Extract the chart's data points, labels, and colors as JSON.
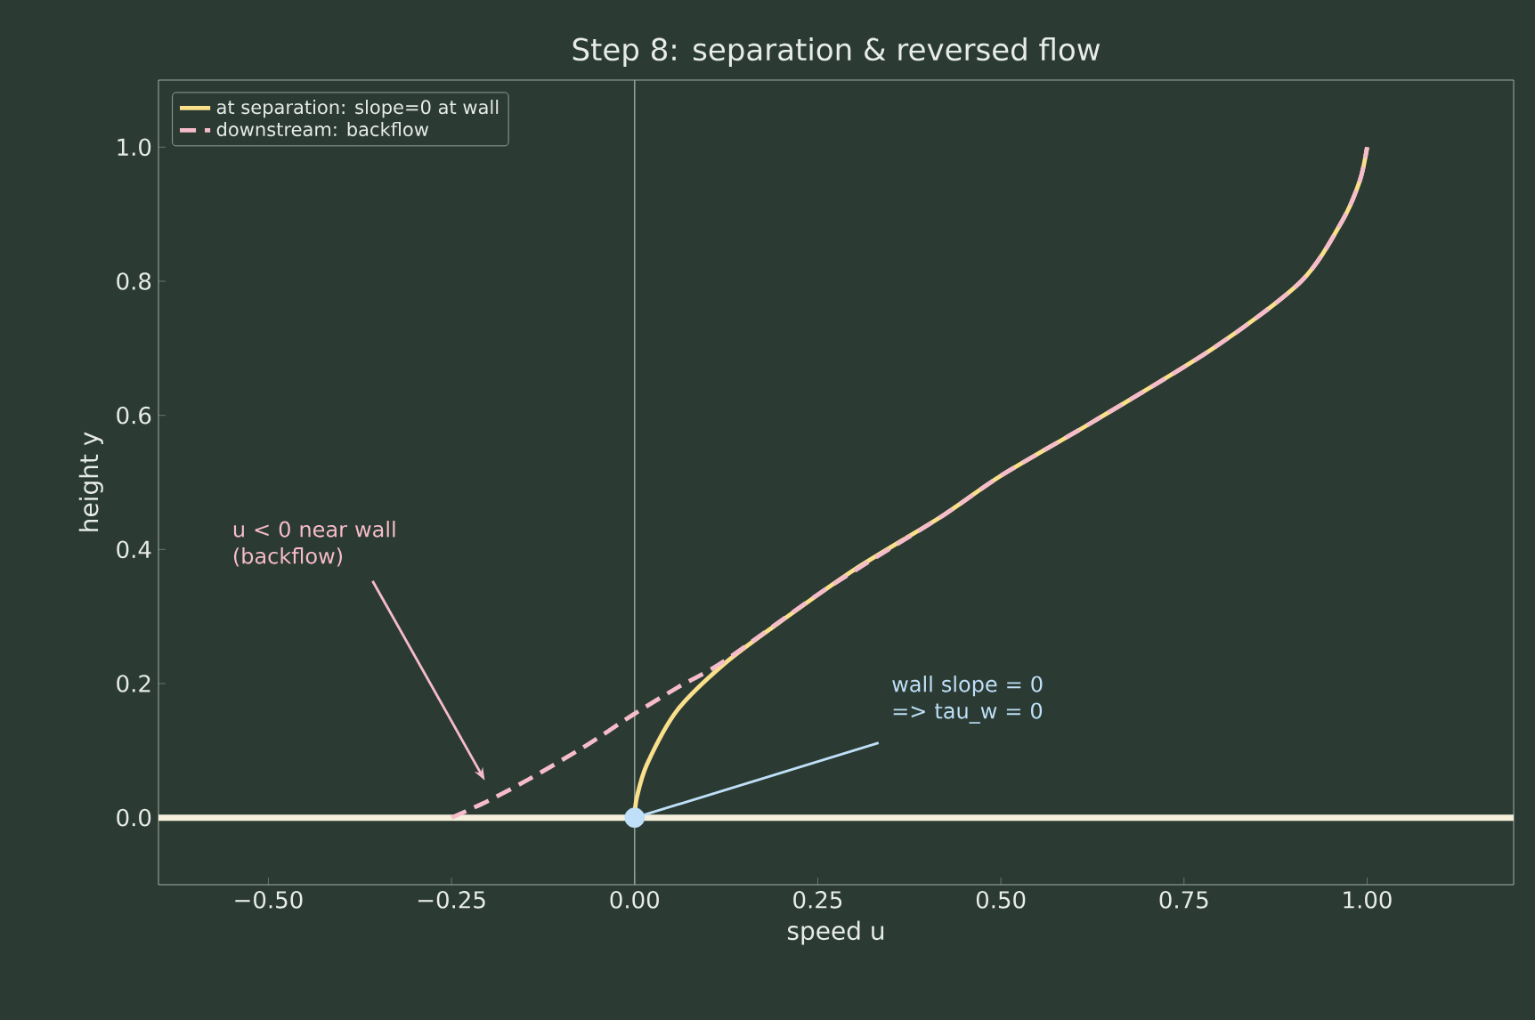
{
  "chart_data": {
    "type": "line",
    "title": "Step 8: separation & reversed flow",
    "xlabel": "speed  u",
    "ylabel": "height  y",
    "xlim": [
      -0.65,
      1.2
    ],
    "ylim": [
      -0.1,
      1.1
    ],
    "xticks": [
      {
        "value": -0.5,
        "label": "−0.50"
      },
      {
        "value": -0.25,
        "label": "−0.25"
      },
      {
        "value": 0,
        "label": "0.00"
      },
      {
        "value": 0.25,
        "label": "0.25"
      },
      {
        "value": 0.5,
        "label": "0.50"
      },
      {
        "value": 0.75,
        "label": "0.75"
      },
      {
        "value": 1,
        "label": "1.00"
      }
    ],
    "yticks": [
      {
        "value": 0,
        "label": "0.0"
      },
      {
        "value": 0.2,
        "label": "0.2"
      },
      {
        "value": 0.4,
        "label": "0.4"
      },
      {
        "value": 0.6,
        "label": "0.6"
      },
      {
        "value": 0.8,
        "label": "0.8"
      },
      {
        "value": 1,
        "label": "1.0"
      }
    ],
    "series": [
      {
        "name": "at separation: slope=0 at wall",
        "color": "#fbe08c",
        "x": [
          0,
          0.003,
          0.017,
          0.058,
          0.123,
          0.196,
          0.3,
          0.42,
          0.5,
          0.625,
          0.79,
          0.91,
          0.966,
          0.99,
          1.0
        ],
        "values": [
          0,
          0.03,
          0.08,
          0.16,
          0.23,
          0.29,
          0.37,
          0.45,
          0.51,
          0.59,
          0.7,
          0.8,
          0.89,
          0.95,
          1.0
        ]
      },
      {
        "name": "downstream: backflow",
        "color": "#f7bccb",
        "line_style": "dashed",
        "x": [
          -0.25,
          -0.2,
          -0.145,
          -0.07,
          0.0,
          0.06,
          0.123,
          0.26,
          0.42,
          0.5,
          0.625,
          0.79,
          0.91,
          0.966,
          0.99,
          1.0
        ],
        "values": [
          0,
          0.025,
          0.057,
          0.105,
          0.155,
          0.195,
          0.234,
          0.34,
          0.45,
          0.51,
          0.59,
          0.7,
          0.8,
          0.89,
          0.95,
          1.0
        ]
      },
      {
        "type": "scatter",
        "color": "#bfe0f8",
        "marker": "circle",
        "x": [
          0
        ],
        "values": [
          0
        ]
      }
    ],
    "ref_lines": [
      {
        "axis": "x",
        "value": 0,
        "color": "#8f9f96"
      },
      {
        "axis": "y",
        "value": 0,
        "color": "#f5f0dc"
      }
    ],
    "annotations": [
      {
        "text": "u < 0 near wall (backflow)",
        "x": -0.207,
        "y": 0.061
      },
      {
        "text": "wall slope = 0 => tau_w = 0",
        "x": 0,
        "y": 0
      }
    ],
    "legend": "top left",
    "grid": false
  }
}
